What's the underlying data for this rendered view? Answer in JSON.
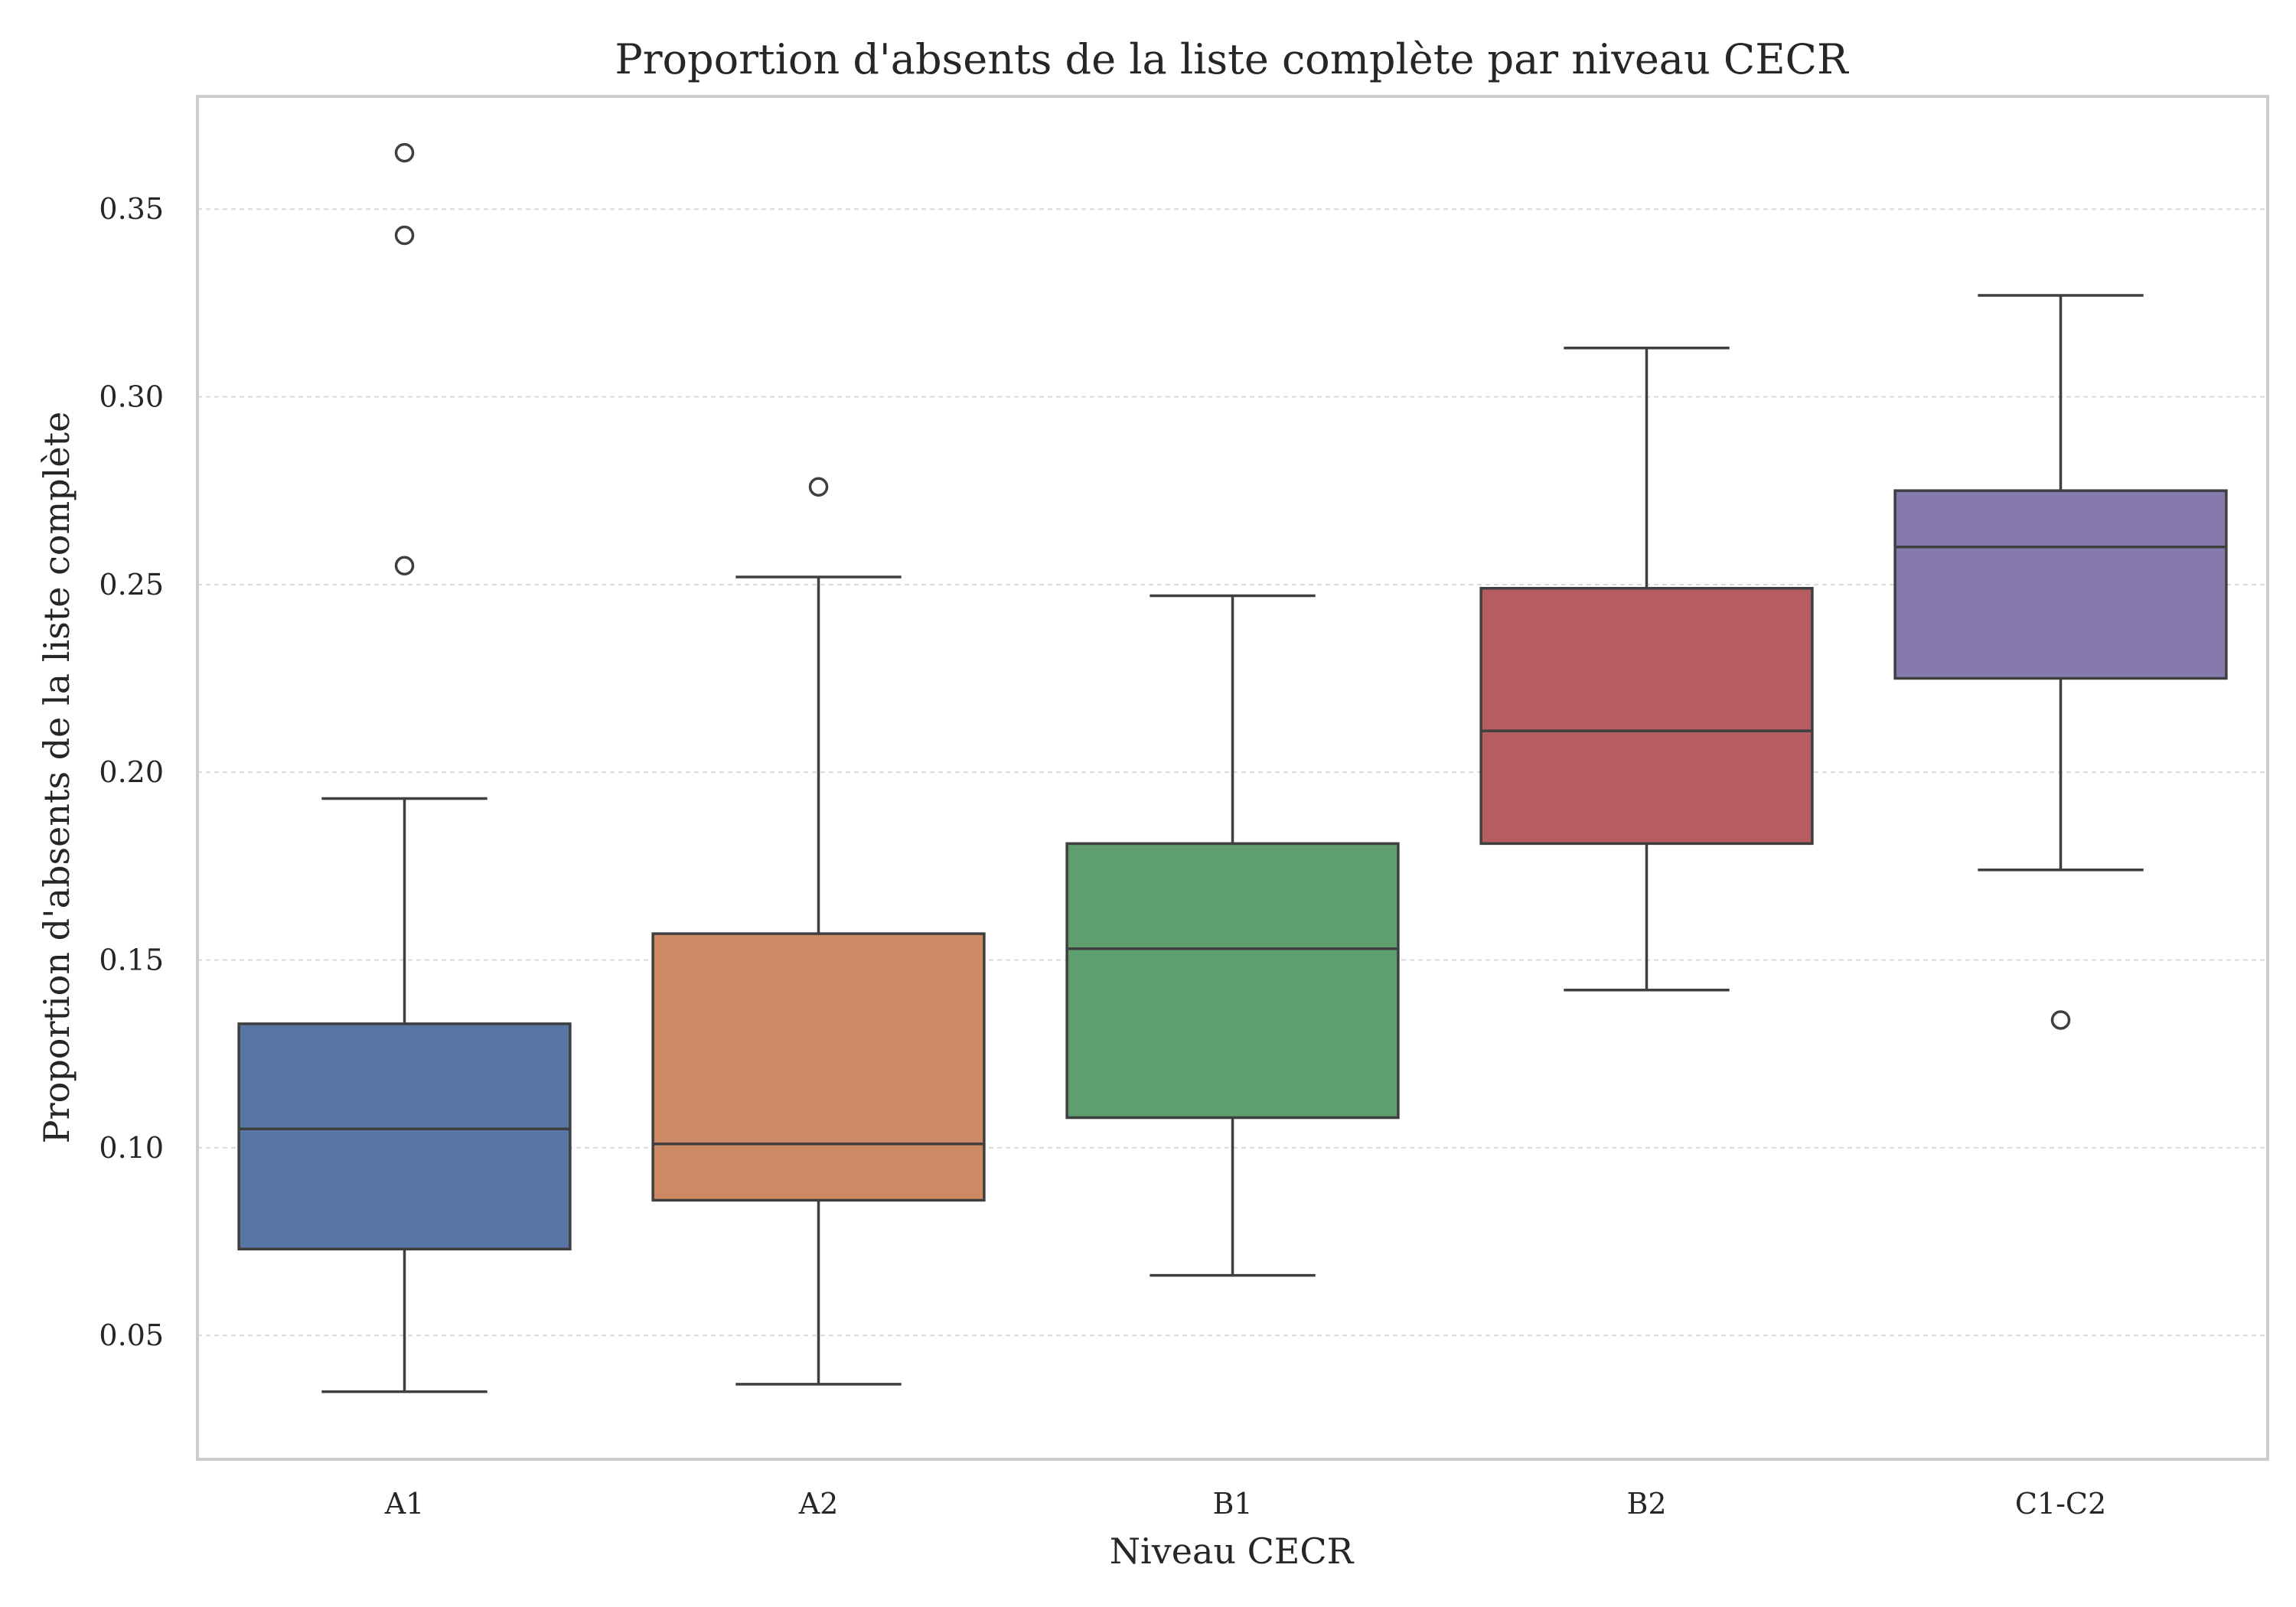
{
  "chart_data": {
    "type": "box",
    "title": "Proportion d'absents de la liste complète par niveau CECR",
    "xlabel": "Niveau CECR",
    "ylabel": "Proportion d'absents de la liste complète",
    "ylim": [
      0.017,
      0.38
    ],
    "yticks": [
      0.05,
      0.1,
      0.15,
      0.2,
      0.25,
      0.3,
      0.35
    ],
    "ytick_labels": [
      "0.05",
      "0.10",
      "0.15",
      "0.20",
      "0.25",
      "0.30",
      "0.35"
    ],
    "grid": true,
    "categories": [
      "A1",
      "A2",
      "B1",
      "B2",
      "C1-C2"
    ],
    "boxes": [
      {
        "category": "A1",
        "color": "#5875a4",
        "whisker_low": 0.035,
        "q1": 0.073,
        "median": 0.105,
        "q3": 0.133,
        "whisker_high": 0.193,
        "outliers": [
          0.255,
          0.343,
          0.365
        ]
      },
      {
        "category": "A2",
        "color": "#cc8963",
        "whisker_low": 0.037,
        "q1": 0.086,
        "median": 0.101,
        "q3": 0.157,
        "whisker_high": 0.252,
        "outliers": [
          0.276
        ]
      },
      {
        "category": "B1",
        "color": "#5f9e6e",
        "whisker_low": 0.066,
        "q1": 0.108,
        "median": 0.153,
        "q3": 0.181,
        "whisker_high": 0.247,
        "outliers": []
      },
      {
        "category": "B2",
        "color": "#b55d60",
        "whisker_low": 0.142,
        "q1": 0.181,
        "median": 0.211,
        "q3": 0.249,
        "whisker_high": 0.313,
        "outliers": []
      },
      {
        "category": "C1-C2",
        "color": "#857aab",
        "whisker_low": 0.174,
        "q1": 0.225,
        "median": 0.26,
        "q3": 0.275,
        "whisker_high": 0.327,
        "outliers": [
          0.134
        ]
      }
    ]
  }
}
